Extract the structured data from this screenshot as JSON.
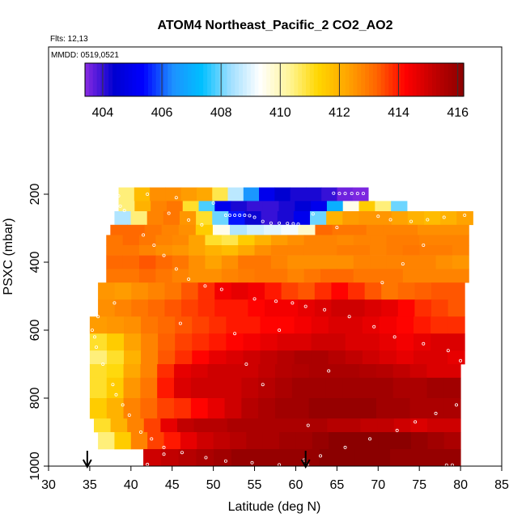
{
  "chart_data": {
    "type": "heatmap",
    "title": "ATOM4 Northeast_Pacific_2 CO2_AO2",
    "info_lines": [
      "Flts: 12,13",
      "MMDD: 0519,0521"
    ],
    "xlabel": "Latitude (deg N)",
    "ylabel": "PSXC (mbar)",
    "xlim": [
      30,
      85
    ],
    "ylim": [
      1000,
      100
    ],
    "y_reversed": true,
    "x_ticks": [
      "30",
      "35",
      "40",
      "45",
      "50",
      "55",
      "60",
      "65",
      "70",
      "75",
      "80",
      "85"
    ],
    "y_ticks": [
      "200",
      "400",
      "600",
      "800",
      "1000"
    ],
    "colorbar": {
      "range": [
        403.4,
        416.2
      ],
      "tick_values": [
        404,
        406,
        408,
        410,
        412,
        414,
        416
      ],
      "tick_labels": [
        "404",
        "406",
        "408",
        "410",
        "412",
        "414",
        "416"
      ],
      "colors": [
        "#8a2be2",
        "#0000d0",
        "#0000ff",
        "#1e90ff",
        "#00bfff",
        "#a0dfff",
        "#ffffff",
        "#fff59a",
        "#ffd700",
        "#ffa500",
        "#ff6600",
        "#ff0000",
        "#c00000",
        "#8b0000"
      ]
    },
    "arrows_at_latitude": [
      34.7,
      61.2
    ],
    "layers": [
      {
        "p_top": 180,
        "p_bot": 220,
        "lat_start": 38.5,
        "lat_end": 68.8,
        "values": [
          410.5,
          411.8,
          412.6,
          412.6,
          412.4,
          412.2,
          410.8,
          408.6,
          406.5,
          405.0,
          404.4,
          404.2,
          404.2,
          404.0,
          403.6,
          403.5
        ]
      },
      {
        "p_top": 220,
        "p_bot": 250,
        "lat_start": 38.5,
        "lat_end": 73.5,
        "values": [
          410.5,
          412.0,
          412.8,
          413.0,
          411.0,
          407.8,
          405.0,
          404.2,
          404.0,
          404.0,
          404.2,
          404.5,
          405.0,
          407.0,
          409.5,
          411.5,
          410.5,
          408.0
        ]
      },
      {
        "p_top": 250,
        "p_bot": 290,
        "lat_start": 38.0,
        "lat_end": 81.5,
        "values": [
          408.5,
          410.5,
          412.8,
          413.0,
          412.5,
          411.0,
          408.0,
          405.5,
          404.3,
          404.0,
          404.2,
          405.0,
          408.0,
          412.0,
          412.4,
          412.5,
          412.5,
          412.3,
          412.0,
          411.8,
          412.0,
          412.3
        ]
      },
      {
        "p_top": 290,
        "p_bot": 320,
        "lat_start": 37.5,
        "lat_end": 81.0,
        "values": [
          413.2,
          413.2,
          413.0,
          412.8,
          412.6,
          411.5,
          409.5,
          408.5,
          408.8,
          409.0,
          409.2,
          409.8,
          413.2,
          413.0,
          413.0,
          412.8,
          412.8,
          412.8,
          412.6,
          412.6,
          412.6
        ]
      },
      {
        "p_top": 320,
        "p_bot": 350,
        "lat_start": 37.0,
        "lat_end": 81.0,
        "values": [
          413.0,
          413.2,
          413.0,
          412.8,
          412.7,
          412.3,
          411.0,
          410.8,
          411.5,
          412.0,
          412.4,
          412.6,
          412.8,
          412.8,
          412.7,
          412.8,
          412.8,
          412.9,
          412.9,
          412.8,
          412.8,
          412.8
        ]
      },
      {
        "p_top": 350,
        "p_bot": 380,
        "lat_start": 37.0,
        "lat_end": 81.0,
        "values": [
          413.0,
          413.0,
          412.8,
          412.6,
          412.5,
          412.3,
          412.0,
          411.8,
          412.2,
          412.6,
          412.8,
          412.8,
          412.8,
          412.8,
          412.9,
          412.9,
          412.8,
          412.9,
          413.0,
          412.9,
          412.9,
          412.8
        ]
      },
      {
        "p_top": 380,
        "p_bot": 420,
        "lat_start": 37.0,
        "lat_end": 81.0,
        "values": [
          413.2,
          413.2,
          413.4,
          413.2,
          413.0,
          412.6,
          412.3,
          412.6,
          413.0,
          413.0,
          412.8,
          412.6,
          412.6,
          412.6,
          412.6,
          412.8,
          412.8,
          412.8,
          412.8,
          412.8,
          412.6,
          412.5
        ]
      },
      {
        "p_top": 420,
        "p_bot": 460,
        "lat_start": 37.0,
        "lat_end": 81.0,
        "values": [
          413.0,
          413.0,
          413.2,
          413.0,
          412.8,
          412.6,
          412.6,
          412.8,
          412.9,
          413.0,
          413.0,
          412.8,
          413.0,
          413.2,
          413.2,
          413.0,
          413.0,
          413.0,
          412.8,
          412.8,
          412.8,
          412.8
        ]
      },
      {
        "p_top": 460,
        "p_bot": 510,
        "lat_start": 36.0,
        "lat_end": 80.5,
        "values": [
          412.5,
          412.4,
          412.6,
          412.8,
          413.0,
          413.4,
          413.8,
          414.4,
          414.6,
          414.4,
          414.0,
          413.6,
          413.4,
          413.8,
          414.2,
          413.8,
          413.4,
          413.0,
          413.2,
          413.3,
          413.4,
          413.4
        ]
      },
      {
        "p_top": 510,
        "p_bot": 560,
        "lat_start": 36.0,
        "lat_end": 80.5,
        "values": [
          412.6,
          412.8,
          413.0,
          413.2,
          413.4,
          413.6,
          413.8,
          414.0,
          414.0,
          414.2,
          414.4,
          414.4,
          414.6,
          414.8,
          415.0,
          415.0,
          414.8,
          414.6,
          414.2,
          413.8,
          413.6,
          413.4
        ]
      },
      {
        "p_top": 560,
        "p_bot": 610,
        "lat_start": 35.0,
        "lat_end": 80.5,
        "values": [
          412.4,
          412.5,
          412.6,
          413.0,
          413.2,
          413.4,
          413.6,
          413.8,
          414.0,
          414.0,
          414.2,
          414.2,
          414.4,
          414.6,
          414.8,
          414.8,
          414.6,
          414.4,
          414.2,
          414.0,
          413.8,
          413.8
        ]
      },
      {
        "p_top": 610,
        "p_bot": 660,
        "lat_start": 35.0,
        "lat_end": 80.5,
        "values": [
          411.0,
          411.5,
          412.3,
          412.8,
          413.3,
          413.6,
          413.8,
          414.0,
          414.2,
          414.4,
          414.6,
          414.8,
          414.8,
          415.0,
          415.0,
          414.8,
          414.8,
          414.6,
          414.4,
          414.6,
          414.8,
          414.8
        ]
      },
      {
        "p_top": 660,
        "p_bot": 700,
        "lat_start": 35.0,
        "lat_end": 80.5,
        "values": [
          410.5,
          411.0,
          412.0,
          412.8,
          413.4,
          413.8,
          414.2,
          414.6,
          414.8,
          415.0,
          415.2,
          415.4,
          415.6,
          415.6,
          415.4,
          415.2,
          415.0,
          414.8,
          414.6,
          414.8,
          414.8,
          414.6
        ]
      },
      {
        "p_top": 700,
        "p_bot": 740,
        "lat_start": 35.0,
        "lat_end": 80.0,
        "values": [
          411.0,
          411.2,
          412.2,
          412.8,
          413.8,
          414.6,
          414.8,
          415.0,
          415.0,
          415.0,
          415.2,
          415.4,
          415.5,
          415.6,
          415.6,
          415.6,
          415.5,
          415.4,
          415.2,
          415.0,
          414.8,
          414.8
        ]
      },
      {
        "p_top": 740,
        "p_bot": 800,
        "lat_start": 35.0,
        "lat_end": 80.0,
        "values": [
          411.0,
          411.5,
          412.5,
          413.0,
          414.0,
          414.8,
          415.0,
          415.0,
          415.0,
          415.2,
          415.4,
          415.6,
          415.8,
          415.8,
          415.8,
          415.8,
          415.8,
          415.8,
          415.6,
          415.6,
          415.8,
          415.8
        ]
      },
      {
        "p_top": 800,
        "p_bot": 860,
        "lat_start": 35.0,
        "lat_end": 80.0,
        "values": [
          411.5,
          412.0,
          412.8,
          413.2,
          413.6,
          413.8,
          414.2,
          414.6,
          415.0,
          415.4,
          415.6,
          415.8,
          415.8,
          416.0,
          416.0,
          416.0,
          416.0,
          415.8,
          415.8,
          415.6,
          415.6,
          415.6
        ]
      },
      {
        "p_top": 860,
        "p_bot": 900,
        "lat_start": 35.5,
        "lat_end": 80.0,
        "values": [
          411.0,
          412.0,
          412.8,
          413.6,
          414.6,
          415.2,
          415.4,
          415.4,
          415.6,
          415.6,
          415.6,
          415.6,
          415.6,
          415.6,
          415.4,
          415.4,
          415.2,
          415.2,
          415.0,
          414.8,
          415.0,
          415.0
        ]
      },
      {
        "p_top": 900,
        "p_bot": 950,
        "lat_start": 36.0,
        "lat_end": 80.0,
        "values": [
          410.5,
          411.5,
          412.8,
          413.6,
          414.0,
          414.6,
          415.0,
          415.2,
          415.4,
          415.6,
          415.6,
          415.8,
          415.8,
          416.0,
          416.2,
          416.2,
          416.2,
          416.2,
          416.2,
          416.0,
          415.8,
          415.6
        ]
      },
      {
        "p_top": 950,
        "p_bot": 1000,
        "lat_start": 41.5,
        "lat_end": 80.0,
        "values": [
          415.0,
          415.2,
          415.4,
          415.6,
          415.8,
          416.0,
          416.0,
          416.0,
          416.0,
          416.0,
          416.2,
          416.2,
          416.2,
          416.2,
          416.0,
          416.0,
          416.0,
          416.0
        ]
      }
    ],
    "flight_points": [
      [
        66.0,
        198
      ],
      [
        66.8,
        198
      ],
      [
        67.5,
        198
      ],
      [
        68.2,
        198
      ],
      [
        64.6,
        197
      ],
      [
        65.3,
        198
      ],
      [
        42.0,
        200
      ],
      [
        45.5,
        210
      ],
      [
        50.0,
        226
      ],
      [
        51.5,
        262
      ],
      [
        52.0,
        262
      ],
      [
        52.6,
        262
      ],
      [
        53.2,
        262
      ],
      [
        53.8,
        262
      ],
      [
        54.4,
        263
      ],
      [
        55.0,
        268
      ],
      [
        56.0,
        280
      ],
      [
        57.0,
        285
      ],
      [
        58.0,
        285
      ],
      [
        59.0,
        286
      ],
      [
        59.7,
        287
      ],
      [
        60.3,
        288
      ],
      [
        38.5,
        205
      ],
      [
        38.7,
        235
      ],
      [
        39.2,
        248
      ],
      [
        44.6,
        256
      ],
      [
        47.0,
        276
      ],
      [
        48.6,
        290
      ],
      [
        62.1,
        258
      ],
      [
        65.0,
        298
      ],
      [
        71.5,
        275
      ],
      [
        74.0,
        280
      ],
      [
        76.0,
        275
      ],
      [
        78.0,
        268
      ],
      [
        80.5,
        262
      ],
      [
        70.0,
        265
      ],
      [
        41.5,
        320
      ],
      [
        42.8,
        350
      ],
      [
        44.0,
        380
      ],
      [
        45.5,
        420
      ],
      [
        47.0,
        450
      ],
      [
        49.0,
        470
      ],
      [
        51.0,
        480
      ],
      [
        55.0,
        508
      ],
      [
        57.6,
        515
      ],
      [
        59.6,
        520
      ],
      [
        61.2,
        530
      ],
      [
        63.5,
        540
      ],
      [
        66.5,
        560
      ],
      [
        69.5,
        590
      ],
      [
        72.0,
        620
      ],
      [
        75.5,
        640
      ],
      [
        78.5,
        660
      ],
      [
        80.0,
        690
      ],
      [
        38.0,
        520
      ],
      [
        36.0,
        560
      ],
      [
        35.3,
        600
      ],
      [
        35.6,
        620
      ],
      [
        35.8,
        650
      ],
      [
        36.6,
        700
      ],
      [
        37.8,
        760
      ],
      [
        38.2,
        790
      ],
      [
        39.0,
        820
      ],
      [
        39.8,
        850
      ],
      [
        41.2,
        900
      ],
      [
        42.5,
        920
      ],
      [
        44.0,
        945
      ],
      [
        46.2,
        960
      ],
      [
        49.1,
        975
      ],
      [
        51.5,
        985
      ],
      [
        54.7,
        990
      ],
      [
        58.0,
        996
      ],
      [
        61.0,
        982
      ],
      [
        61.4,
        996
      ],
      [
        63.0,
        970
      ],
      [
        66.0,
        945
      ],
      [
        69.0,
        920
      ],
      [
        72.3,
        895
      ],
      [
        74.5,
        870
      ],
      [
        77.0,
        845
      ],
      [
        79.5,
        820
      ],
      [
        78.3,
        997
      ],
      [
        79.0,
        997
      ],
      [
        42.0,
        995
      ],
      [
        44.0,
        965
      ],
      [
        58.0,
        600
      ],
      [
        61.5,
        880
      ],
      [
        64.0,
        720
      ],
      [
        70.5,
        460
      ],
      [
        73.0,
        405
      ],
      [
        75.5,
        350
      ],
      [
        46.0,
        580
      ],
      [
        52.6,
        610
      ],
      [
        54.0,
        700
      ],
      [
        56.0,
        760
      ]
    ]
  }
}
